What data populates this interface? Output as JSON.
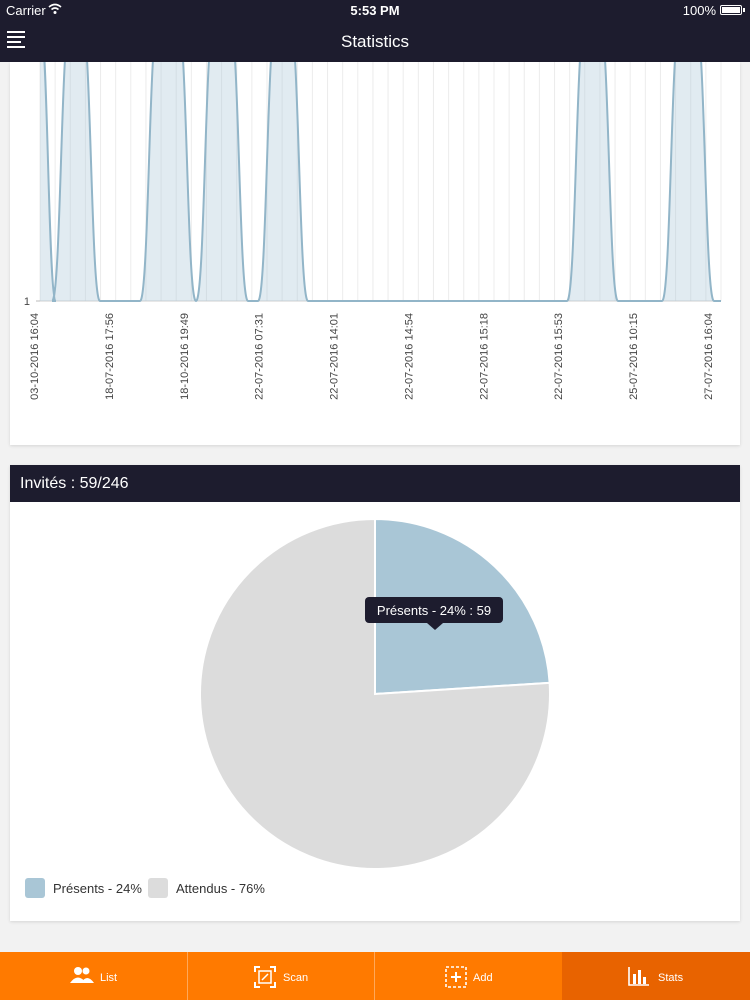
{
  "status_bar": {
    "carrier": "Carrier",
    "time": "5:53 PM",
    "battery": "100%"
  },
  "nav": {
    "title": "Statistics",
    "menu_icon": "hamburger-icon"
  },
  "line_chart": {
    "y_tick": "1",
    "x_labels": [
      "03-10-2016 16:04",
      "18-07-2016 17:56",
      "18-10-2016 19:49",
      "22-07-2016 07:31",
      "22-07-2016 14:01",
      "22-07-2016 14:54",
      "22-07-2016 15:18",
      "22-07-2016 15:53",
      "25-07-2016 10:15",
      "27-07-2016 16:04"
    ]
  },
  "pie_panel": {
    "header": "Invités : 59/246",
    "tooltip": "Présents - 24% : 59"
  },
  "chart_data": [
    {
      "type": "area",
      "ytick": "1",
      "x": [
        "03-10-2016 16:04",
        "18-07-2016 17:56",
        "18-10-2016 19:49",
        "22-07-2016 07:31",
        "22-07-2016 14:01",
        "22-07-2016 14:54",
        "22-07-2016 15:18",
        "22-07-2016 15:53",
        "25-07-2016 10:15",
        "27-07-2016 16:04"
      ],
      "color": "#a9c6d6",
      "grid": true
    },
    {
      "type": "pie",
      "slices": [
        {
          "label": "Présents - 24%",
          "value": 59,
          "color": "#a9c6d6"
        },
        {
          "label": "Attendus - 76%",
          "value": 187,
          "color": "#dcdcdc"
        }
      ],
      "tooltip": "Présents - 24% : 59",
      "legend_position": "bottom-left"
    }
  ],
  "tabs": [
    {
      "label": "List",
      "icon": "users-icon",
      "active": false
    },
    {
      "label": "Scan",
      "icon": "scan-icon",
      "active": false
    },
    {
      "label": "Add",
      "icon": "add-icon",
      "active": false
    },
    {
      "label": "Stats",
      "icon": "bar-chart-icon",
      "active": true
    }
  ],
  "colors": {
    "header": "#1d1c2e",
    "tabbar": "#ff7a00",
    "tab_active": "#e86300",
    "present": "#a9c6d6",
    "expected": "#dcdcdc"
  }
}
